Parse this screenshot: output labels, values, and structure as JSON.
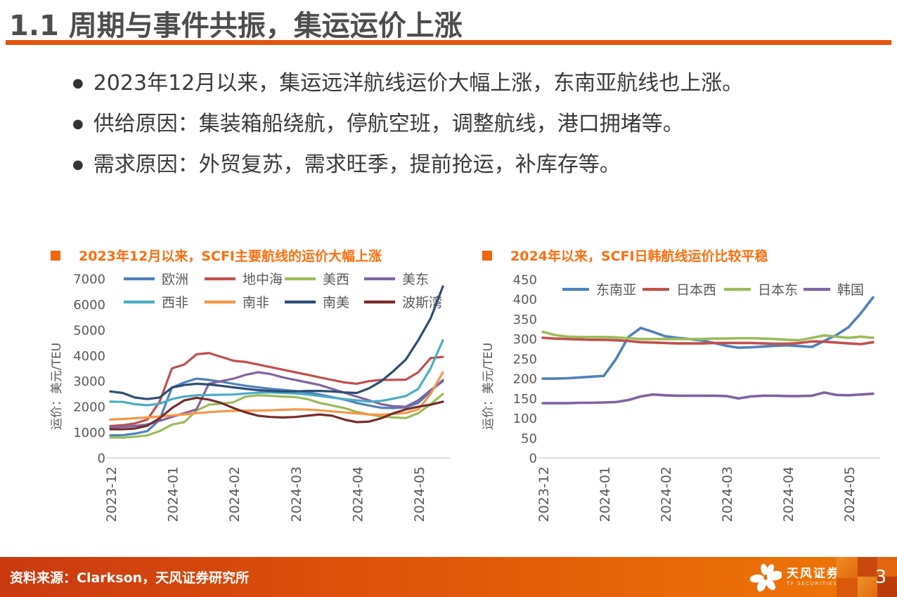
{
  "header": {
    "title": "1.1 周期与事件共振，集运运价上涨"
  },
  "bullets": [
    "2023年12月以来，集运远洋航线运价大幅上涨，东南亚航线也上涨。",
    "供给原因：集装箱船绕航，停航空班，调整航线，港口拥堵等。",
    "需求原因：外贸复苏，需求旺季，提前抢运，补库存等。"
  ],
  "colors": {
    "accent_orange": "#E4530E",
    "chart_title_orange": "#FC6E0E",
    "title_gray": "#4D4D4D",
    "footer_gradient_left": "#C93A10",
    "footer_gradient_right": "#EE7806"
  },
  "chart_data": [
    {
      "type": "line",
      "title": "2023年12月以来，SCFI主要航线的运价大幅上涨",
      "ylabel": "运价：美元/TEU",
      "ylim": [
        0,
        7000
      ],
      "ytick_step": 1000,
      "grid": false,
      "legend_position": "top-inside",
      "categories": [
        "2023-12",
        "2024-01",
        "2024-02",
        "2024-03",
        "2024-04",
        "2024-05"
      ],
      "tick_week_index": [
        0,
        5,
        10,
        15,
        20,
        25
      ],
      "series": [
        {
          "name": "欧洲",
          "color": "#4F81BD",
          "values": [
            880,
            890,
            950,
            1050,
            1500,
            2750,
            2950,
            3100,
            3050,
            2980,
            2900,
            2820,
            2760,
            2700,
            2660,
            2620,
            2560,
            2480,
            2380,
            2280,
            2150,
            2050,
            1960,
            1950,
            1980,
            2150,
            2600,
            3050
          ]
        },
        {
          "name": "地中海",
          "color": "#C0504D",
          "values": [
            1250,
            1280,
            1350,
            1500,
            2200,
            3500,
            3650,
            4050,
            4100,
            3950,
            3800,
            3750,
            3650,
            3550,
            3450,
            3350,
            3250,
            3150,
            3050,
            2950,
            2900,
            3000,
            3050,
            3050,
            3060,
            3350,
            3900,
            3950
          ]
        },
        {
          "name": "美西",
          "color": "#9BBB59",
          "values": [
            800,
            790,
            830,
            880,
            1050,
            1300,
            1400,
            1850,
            2080,
            2120,
            2180,
            2400,
            2450,
            2430,
            2400,
            2380,
            2300,
            2150,
            2050,
            1950,
            1800,
            1700,
            1620,
            1580,
            1560,
            1750,
            2100,
            2500
          ]
        },
        {
          "name": "美东",
          "color": "#8064A2",
          "values": [
            1200,
            1220,
            1250,
            1310,
            1450,
            1600,
            1750,
            1900,
            2900,
            3000,
            3100,
            3250,
            3350,
            3280,
            3150,
            3050,
            2950,
            2850,
            2700,
            2550,
            2400,
            2250,
            2100,
            2020,
            2000,
            2250,
            2650,
            3000
          ]
        },
        {
          "name": "西非",
          "color": "#4BACC6",
          "values": [
            2200,
            2190,
            2100,
            2060,
            2120,
            2300,
            2400,
            2450,
            2460,
            2470,
            2480,
            2520,
            2550,
            2560,
            2540,
            2520,
            2480,
            2420,
            2360,
            2300,
            2250,
            2200,
            2230,
            2320,
            2420,
            2700,
            3500,
            4600
          ]
        },
        {
          "name": "南非",
          "color": "#F79646",
          "values": [
            1500,
            1520,
            1550,
            1580,
            1620,
            1660,
            1700,
            1750,
            1790,
            1820,
            1840,
            1850,
            1850,
            1860,
            1880,
            1900,
            1890,
            1860,
            1820,
            1780,
            1740,
            1700,
            1690,
            1720,
            1760,
            1900,
            2500,
            3350
          ]
        },
        {
          "name": "南美",
          "color": "#2C4D75",
          "values": [
            2600,
            2540,
            2360,
            2300,
            2360,
            2750,
            2850,
            2900,
            2870,
            2820,
            2760,
            2700,
            2650,
            2620,
            2600,
            2600,
            2620,
            2620,
            2600,
            2560,
            2540,
            2720,
            3000,
            3400,
            3850,
            4600,
            5450,
            6700
          ]
        },
        {
          "name": "波斯湾",
          "color": "#772C2A",
          "values": [
            1120,
            1120,
            1150,
            1260,
            1550,
            1950,
            2250,
            2350,
            2280,
            2150,
            1950,
            1780,
            1650,
            1600,
            1580,
            1600,
            1650,
            1700,
            1650,
            1500,
            1400,
            1420,
            1550,
            1750,
            1900,
            2000,
            2080,
            2200
          ]
        }
      ]
    },
    {
      "type": "line",
      "title": "2024年以来，SCFI日韩航线运价比较平稳",
      "ylabel": "运价：美元/TEU",
      "ylim": [
        0,
        450
      ],
      "ytick_step": 50,
      "grid": false,
      "legend_position": "top-inside",
      "categories": [
        "2023-12",
        "2024-01",
        "2024-02",
        "2024-03",
        "2024-04",
        "2024-05"
      ],
      "tick_week_index": [
        0,
        5,
        10,
        15,
        20,
        25
      ],
      "series": [
        {
          "name": "东南亚",
          "color": "#4F81BD",
          "values": [
            200,
            200,
            201,
            203,
            205,
            207,
            250,
            305,
            328,
            318,
            307,
            303,
            300,
            296,
            290,
            283,
            278,
            279,
            281,
            283,
            284,
            282,
            280,
            295,
            310,
            330,
            365,
            405
          ]
        },
        {
          "name": "日本西",
          "color": "#C0504D",
          "values": [
            303,
            301,
            300,
            299,
            298,
            298,
            297,
            295,
            292,
            291,
            290,
            289,
            289,
            289,
            290,
            290,
            290,
            290,
            289,
            288,
            288,
            290,
            294,
            293,
            291,
            289,
            287,
            292
          ]
        },
        {
          "name": "日本东",
          "color": "#9BBB59",
          "values": [
            318,
            310,
            306,
            305,
            305,
            305,
            304,
            302,
            300,
            300,
            300,
            300,
            300,
            300,
            301,
            301,
            302,
            302,
            301,
            300,
            298,
            297,
            303,
            309,
            306,
            303,
            306,
            303
          ]
        },
        {
          "name": "韩国",
          "color": "#8064A2",
          "values": [
            138,
            138,
            138,
            139,
            139,
            140,
            141,
            146,
            155,
            160,
            158,
            157,
            157,
            157,
            157,
            156,
            150,
            155,
            157,
            157,
            156,
            156,
            157,
            165,
            159,
            158,
            160,
            162
          ]
        }
      ]
    }
  ],
  "footer": {
    "source": "资料来源：Clarkson，天风证券研究所",
    "logo_cn": "天风证券",
    "logo_en": "TF SECURITIES",
    "page_number": "3"
  }
}
